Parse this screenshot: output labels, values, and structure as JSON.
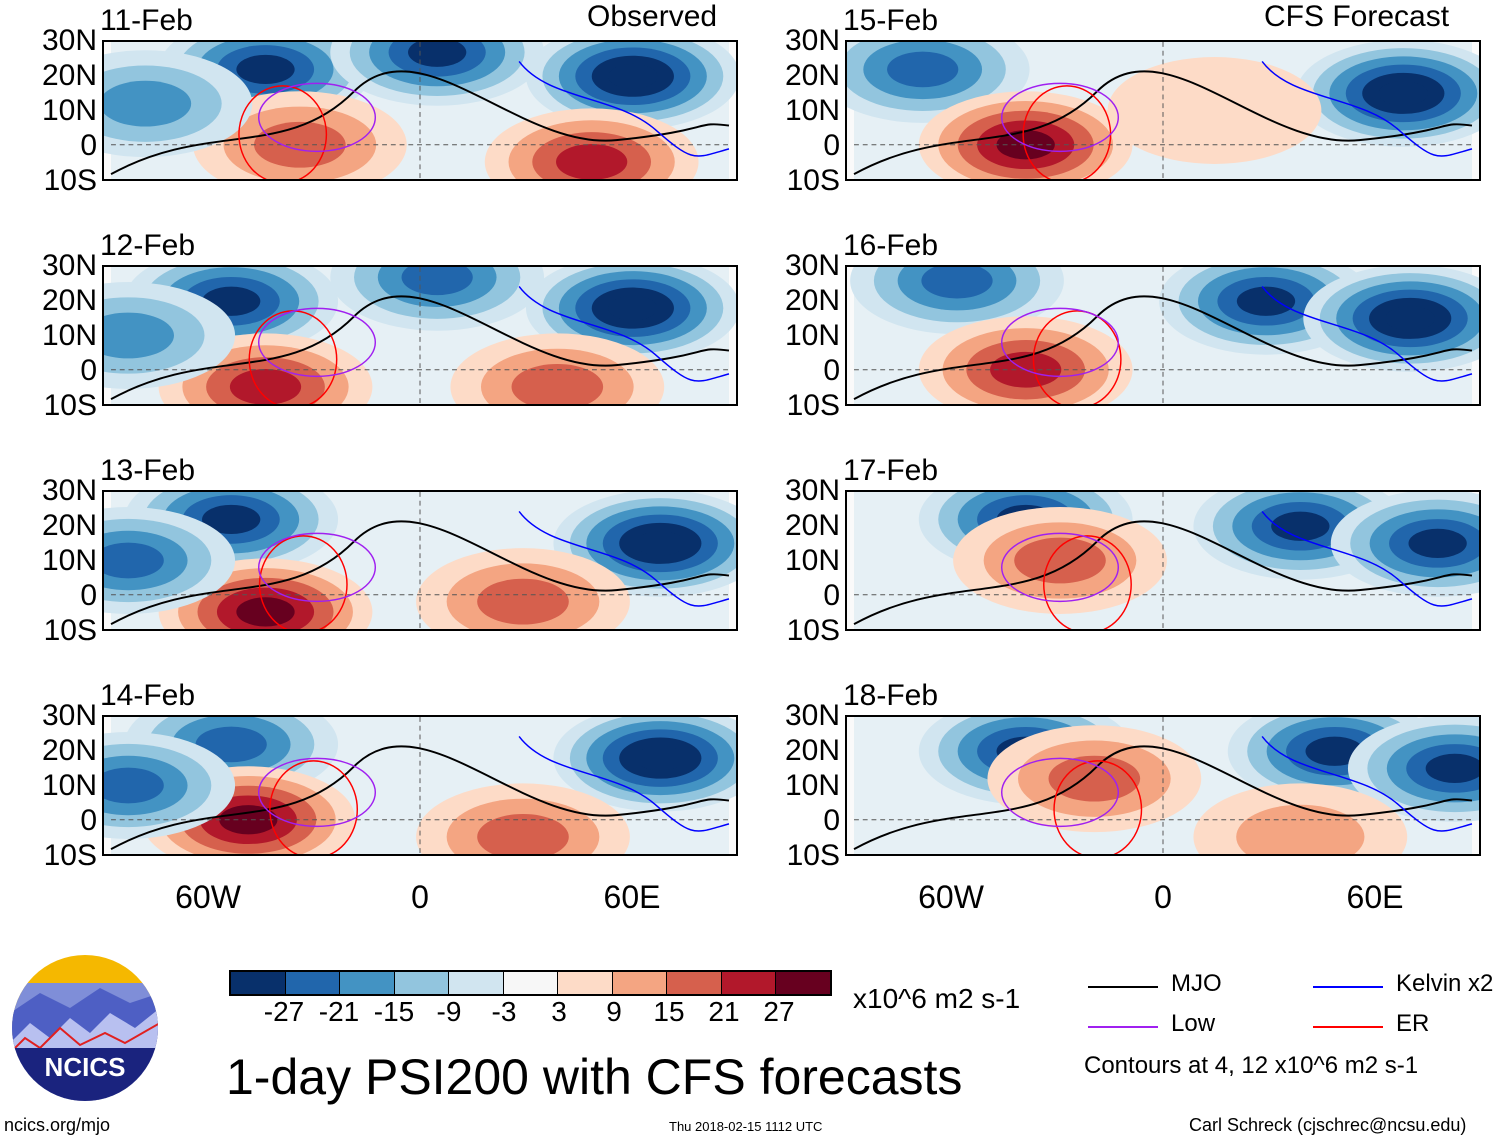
{
  "chart_data": {
    "type": "heatmap",
    "title": "1-day PSI200 with CFS forecasts",
    "units": "x10^6 m2 s-1",
    "left_column_label": "Observed",
    "right_column_label": "CFS Forecast",
    "lat_ticks": [
      "30N",
      "20N",
      "10N",
      "0",
      "10S"
    ],
    "lon_ticks": [
      "60W",
      "0",
      "60E"
    ],
    "lon_range": [
      -90,
      90
    ],
    "lat_range": [
      -10,
      30
    ],
    "colorbar": {
      "ticks": [
        "-27",
        "-21",
        "-15",
        "-9",
        "-3",
        "3",
        "9",
        "15",
        "21",
        "27"
      ],
      "colors": [
        "#08306b",
        "#2166ac",
        "#4393c3",
        "#92c5de",
        "#d1e5f0",
        "#f7f7f7",
        "#fddbc7",
        "#f4a582",
        "#d6604d",
        "#b2182b",
        "#67001f"
      ]
    },
    "panels": [
      {
        "date": "11-Feb",
        "blobs": [
          [
            -45,
            22,
            -27
          ],
          [
            5,
            27,
            -27
          ],
          [
            62,
            20,
            -30
          ],
          [
            -35,
            0,
            15
          ],
          [
            50,
            -5,
            21
          ],
          [
            -80,
            12,
            -15
          ]
        ]
      },
      {
        "date": "12-Feb",
        "blobs": [
          [
            -55,
            20,
            -27
          ],
          [
            5,
            27,
            -21
          ],
          [
            62,
            18,
            -30
          ],
          [
            -45,
            -5,
            21
          ],
          [
            40,
            -5,
            15
          ],
          [
            -85,
            10,
            -15
          ]
        ]
      },
      {
        "date": "13-Feb",
        "blobs": [
          [
            -55,
            22,
            -27
          ],
          [
            70,
            15,
            -30
          ],
          [
            -45,
            -5,
            27
          ],
          [
            30,
            -2,
            15
          ],
          [
            -85,
            10,
            -21
          ]
        ]
      },
      {
        "date": "14-Feb",
        "blobs": [
          [
            -55,
            22,
            -21
          ],
          [
            70,
            18,
            -30
          ],
          [
            -50,
            0,
            27
          ],
          [
            30,
            -5,
            15
          ],
          [
            -85,
            10,
            -21
          ]
        ]
      },
      {
        "date": "15-Feb",
        "blobs": [
          [
            -70,
            22,
            -21
          ],
          [
            70,
            15,
            -30
          ],
          [
            -40,
            0,
            27
          ],
          [
            15,
            10,
            3
          ]
        ]
      },
      {
        "date": "16-Feb",
        "blobs": [
          [
            -60,
            26,
            -21
          ],
          [
            30,
            20,
            -27
          ],
          [
            72,
            15,
            -30
          ],
          [
            -40,
            0,
            21
          ]
        ]
      },
      {
        "date": "17-Feb",
        "blobs": [
          [
            -40,
            22,
            -27
          ],
          [
            40,
            20,
            -27
          ],
          [
            80,
            15,
            -27
          ],
          [
            -30,
            10,
            15
          ]
        ]
      },
      {
        "date": "18-Feb",
        "blobs": [
          [
            -40,
            20,
            -27
          ],
          [
            50,
            20,
            -27
          ],
          [
            85,
            15,
            -27
          ],
          [
            -20,
            12,
            15
          ],
          [
            40,
            -5,
            9
          ]
        ]
      }
    ],
    "legend": [
      {
        "label": "MJO",
        "color": "#000000"
      },
      {
        "label": "Kelvin x2",
        "color": "#0000ff"
      },
      {
        "label": "Low",
        "color": "#a020f0"
      },
      {
        "label": "ER",
        "color": "#ff0000"
      }
    ],
    "contour_note": "Contours at 4, 12 x10^6 m2 s-1"
  },
  "footer": {
    "logo_text": "NCICS",
    "url": "ncics.org/mjo",
    "timestamp": "Thu 2018-02-15 1112 UTC",
    "credit": "Carl Schreck (cjschrec@ncsu.edu)"
  }
}
